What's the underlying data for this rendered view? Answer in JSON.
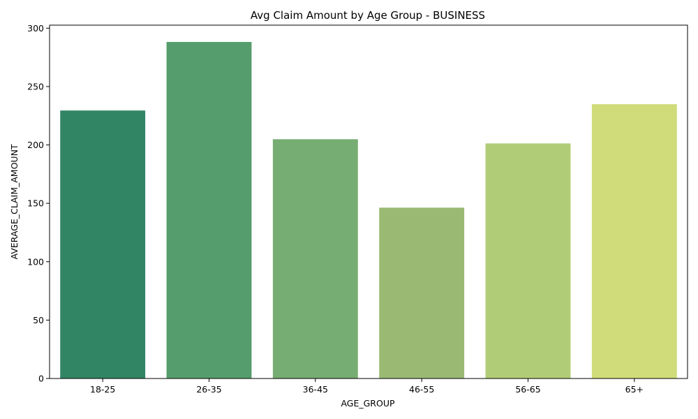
{
  "chart_data": {
    "type": "bar",
    "title": "Avg Claim Amount by Age Group - BUSINESS",
    "xlabel": "AGE_GROUP",
    "ylabel": "AVERAGE_CLAIM_AMOUNT",
    "categories": [
      "18-25",
      "26-35",
      "36-45",
      "46-55",
      "56-65",
      "65+"
    ],
    "values": [
      229.5,
      288.2,
      204.9,
      146.3,
      201.3,
      234.9
    ],
    "ylim": [
      0,
      302.6
    ],
    "yticks": [
      0,
      50,
      100,
      150,
      200,
      250,
      300
    ],
    "grid": false,
    "legend": "none",
    "colors": [
      "#328564",
      "#559d6d",
      "#76ad72",
      "#9aba74",
      "#b1cc76",
      "#cfdc79"
    ]
  }
}
